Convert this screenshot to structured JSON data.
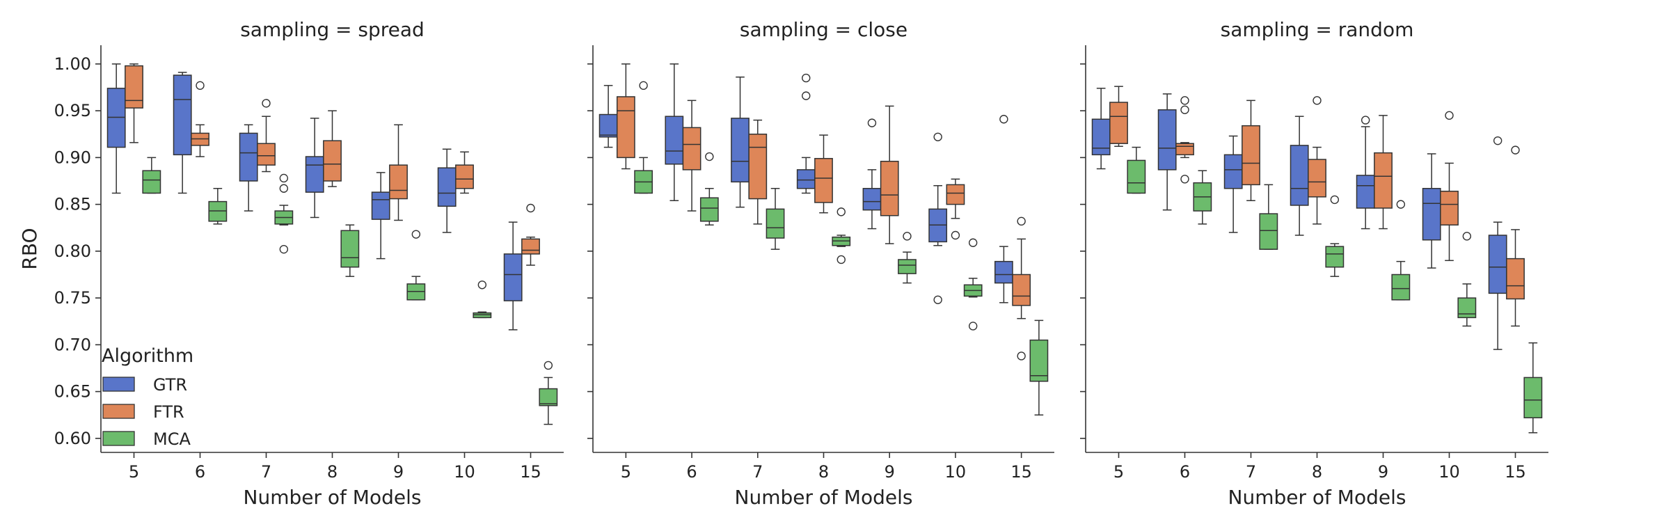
{
  "chart_data": {
    "type": "box",
    "x_label": "Number of Models",
    "y_label": "RBO",
    "categories": [
      "5",
      "6",
      "7",
      "8",
      "9",
      "10",
      "15"
    ],
    "ylim": [
      0.585,
      1.02
    ],
    "y_ticks": [
      0.6,
      0.65,
      0.7,
      0.75,
      0.8,
      0.85,
      0.9,
      0.95,
      1.0
    ],
    "y_tick_labels": [
      "0.60",
      "0.65",
      "0.70",
      "0.75",
      "0.80",
      "0.85",
      "0.90",
      "0.95",
      "1.00"
    ],
    "grid": false,
    "legend": {
      "title": "Algorithm",
      "placement": "lower-left",
      "entries": [
        "GTR",
        "FTR",
        "MCA"
      ]
    },
    "series": [
      {
        "name": "GTR",
        "color": "#5975c9"
      },
      {
        "name": "FTR",
        "color": "#de8658"
      },
      {
        "name": "MCA",
        "color": "#6cbb6c"
      }
    ],
    "panels": [
      {
        "title": "sampling = spread",
        "boxes": {
          "GTR": [
            {
              "whislo": 0.862,
              "q1": 0.911,
              "med": 0.943,
              "q3": 0.974,
              "whishi": 1.0,
              "fliers": []
            },
            {
              "whislo": 0.862,
              "q1": 0.903,
              "med": 0.962,
              "q3": 0.988,
              "whishi": 0.991,
              "fliers": []
            },
            {
              "whislo": 0.843,
              "q1": 0.875,
              "med": 0.905,
              "q3": 0.926,
              "whishi": 0.935,
              "fliers": []
            },
            {
              "whislo": 0.836,
              "q1": 0.863,
              "med": 0.892,
              "q3": 0.901,
              "whishi": 0.942,
              "fliers": []
            },
            {
              "whislo": 0.792,
              "q1": 0.834,
              "med": 0.855,
              "q3": 0.863,
              "whishi": 0.884,
              "fliers": []
            },
            {
              "whislo": 0.82,
              "q1": 0.848,
              "med": 0.862,
              "q3": 0.889,
              "whishi": 0.909,
              "fliers": []
            },
            {
              "whislo": 0.716,
              "q1": 0.747,
              "med": 0.775,
              "q3": 0.797,
              "whishi": 0.831,
              "fliers": []
            }
          ],
          "FTR": [
            {
              "whislo": 0.916,
              "q1": 0.953,
              "med": 0.961,
              "q3": 0.998,
              "whishi": 1.0,
              "fliers": []
            },
            {
              "whislo": 0.901,
              "q1": 0.913,
              "med": 0.92,
              "q3": 0.926,
              "whishi": 0.935,
              "fliers": [
                0.977
              ]
            },
            {
              "whislo": 0.885,
              "q1": 0.892,
              "med": 0.902,
              "q3": 0.915,
              "whishi": 0.944,
              "fliers": [
                0.958
              ]
            },
            {
              "whislo": 0.869,
              "q1": 0.875,
              "med": 0.893,
              "q3": 0.918,
              "whishi": 0.95,
              "fliers": []
            },
            {
              "whislo": 0.833,
              "q1": 0.856,
              "med": 0.865,
              "q3": 0.892,
              "whishi": 0.935,
              "fliers": []
            },
            {
              "whislo": 0.862,
              "q1": 0.867,
              "med": 0.877,
              "q3": 0.892,
              "whishi": 0.906,
              "fliers": []
            },
            {
              "whislo": 0.785,
              "q1": 0.797,
              "med": 0.801,
              "q3": 0.813,
              "whishi": 0.815,
              "fliers": [
                0.846
              ]
            }
          ],
          "MCA": [
            {
              "whislo": 0.862,
              "q1": 0.862,
              "med": 0.876,
              "q3": 0.886,
              "whishi": 0.9,
              "fliers": []
            },
            {
              "whislo": 0.829,
              "q1": 0.832,
              "med": 0.843,
              "q3": 0.853,
              "whishi": 0.867,
              "fliers": []
            },
            {
              "whislo": 0.828,
              "q1": 0.829,
              "med": 0.836,
              "q3": 0.843,
              "whishi": 0.849,
              "fliers": [
                0.878,
                0.867,
                0.802
              ]
            },
            {
              "whislo": 0.773,
              "q1": 0.783,
              "med": 0.793,
              "q3": 0.822,
              "whishi": 0.828,
              "fliers": []
            },
            {
              "whislo": 0.748,
              "q1": 0.748,
              "med": 0.757,
              "q3": 0.765,
              "whishi": 0.773,
              "fliers": [
                0.818
              ]
            },
            {
              "whislo": 0.729,
              "q1": 0.729,
              "med": 0.732,
              "q3": 0.734,
              "whishi": 0.735,
              "fliers": [
                0.764
              ]
            },
            {
              "whislo": 0.615,
              "q1": 0.635,
              "med": 0.637,
              "q3": 0.653,
              "whishi": 0.665,
              "fliers": [
                0.678
              ]
            }
          ]
        }
      },
      {
        "title": "sampling = close",
        "boxes": {
          "GTR": [
            {
              "whislo": 0.911,
              "q1": 0.922,
              "med": 0.924,
              "q3": 0.946,
              "whishi": 0.977,
              "fliers": []
            },
            {
              "whislo": 0.854,
              "q1": 0.893,
              "med": 0.907,
              "q3": 0.944,
              "whishi": 1.0,
              "fliers": []
            },
            {
              "whislo": 0.847,
              "q1": 0.874,
              "med": 0.896,
              "q3": 0.942,
              "whishi": 0.986,
              "fliers": []
            },
            {
              "whislo": 0.862,
              "q1": 0.867,
              "med": 0.876,
              "q3": 0.887,
              "whishi": 0.9,
              "fliers": [
                0.966,
                0.985
              ]
            },
            {
              "whislo": 0.824,
              "q1": 0.844,
              "med": 0.853,
              "q3": 0.867,
              "whishi": 0.887,
              "fliers": [
                0.937
              ]
            },
            {
              "whislo": 0.806,
              "q1": 0.81,
              "med": 0.828,
              "q3": 0.845,
              "whishi": 0.87,
              "fliers": [
                0.922,
                0.748
              ]
            },
            {
              "whislo": 0.745,
              "q1": 0.766,
              "med": 0.775,
              "q3": 0.789,
              "whishi": 0.805,
              "fliers": [
                0.941
              ]
            }
          ],
          "FTR": [
            {
              "whislo": 0.888,
              "q1": 0.9,
              "med": 0.95,
              "q3": 0.965,
              "whishi": 1.0,
              "fliers": []
            },
            {
              "whislo": 0.843,
              "q1": 0.887,
              "med": 0.914,
              "q3": 0.932,
              "whishi": 0.961,
              "fliers": []
            },
            {
              "whislo": 0.829,
              "q1": 0.856,
              "med": 0.911,
              "q3": 0.925,
              "whishi": 0.94,
              "fliers": []
            },
            {
              "whislo": 0.841,
              "q1": 0.852,
              "med": 0.878,
              "q3": 0.899,
              "whishi": 0.924,
              "fliers": []
            },
            {
              "whislo": 0.808,
              "q1": 0.838,
              "med": 0.86,
              "q3": 0.896,
              "whishi": 0.955,
              "fliers": []
            },
            {
              "whislo": 0.835,
              "q1": 0.85,
              "med": 0.862,
              "q3": 0.871,
              "whishi": 0.877,
              "fliers": [
                0.817
              ]
            },
            {
              "whislo": 0.728,
              "q1": 0.742,
              "med": 0.752,
              "q3": 0.775,
              "whishi": 0.813,
              "fliers": [
                0.832,
                0.688
              ]
            }
          ],
          "MCA": [
            {
              "whislo": 0.862,
              "q1": 0.862,
              "med": 0.874,
              "q3": 0.886,
              "whishi": 0.9,
              "fliers": [
                0.977
              ]
            },
            {
              "whislo": 0.828,
              "q1": 0.832,
              "med": 0.846,
              "q3": 0.857,
              "whishi": 0.867,
              "fliers": [
                0.901
              ]
            },
            {
              "whislo": 0.802,
              "q1": 0.814,
              "med": 0.825,
              "q3": 0.845,
              "whishi": 0.867,
              "fliers": []
            },
            {
              "whislo": 0.805,
              "q1": 0.806,
              "med": 0.811,
              "q3": 0.815,
              "whishi": 0.817,
              "fliers": [
                0.842,
                0.791
              ]
            },
            {
              "whislo": 0.766,
              "q1": 0.776,
              "med": 0.785,
              "q3": 0.791,
              "whishi": 0.799,
              "fliers": [
                0.816
              ]
            },
            {
              "whislo": 0.751,
              "q1": 0.752,
              "med": 0.758,
              "q3": 0.764,
              "whishi": 0.771,
              "fliers": [
                0.809,
                0.72
              ]
            },
            {
              "whislo": 0.625,
              "q1": 0.661,
              "med": 0.667,
              "q3": 0.705,
              "whishi": 0.726,
              "fliers": []
            }
          ]
        }
      },
      {
        "title": "sampling = random",
        "boxes": {
          "GTR": [
            {
              "whislo": 0.888,
              "q1": 0.903,
              "med": 0.91,
              "q3": 0.941,
              "whishi": 0.974,
              "fliers": []
            },
            {
              "whislo": 0.844,
              "q1": 0.887,
              "med": 0.91,
              "q3": 0.951,
              "whishi": 0.968,
              "fliers": []
            },
            {
              "whislo": 0.82,
              "q1": 0.867,
              "med": 0.887,
              "q3": 0.903,
              "whishi": 0.923,
              "fliers": []
            },
            {
              "whislo": 0.817,
              "q1": 0.849,
              "med": 0.867,
              "q3": 0.913,
              "whishi": 0.944,
              "fliers": []
            },
            {
              "whislo": 0.824,
              "q1": 0.846,
              "med": 0.87,
              "q3": 0.881,
              "whishi": 0.933,
              "fliers": [
                0.94
              ]
            },
            {
              "whislo": 0.782,
              "q1": 0.812,
              "med": 0.851,
              "q3": 0.867,
              "whishi": 0.904,
              "fliers": []
            },
            {
              "whislo": 0.695,
              "q1": 0.755,
              "med": 0.783,
              "q3": 0.817,
              "whishi": 0.831,
              "fliers": [
                0.918
              ]
            }
          ],
          "FTR": [
            {
              "whislo": 0.912,
              "q1": 0.915,
              "med": 0.944,
              "q3": 0.959,
              "whishi": 0.976,
              "fliers": []
            },
            {
              "whislo": 0.9,
              "q1": 0.903,
              "med": 0.912,
              "q3": 0.915,
              "whishi": 0.916,
              "fliers": [
                0.961,
                0.951,
                0.877
              ]
            },
            {
              "whislo": 0.854,
              "q1": 0.871,
              "med": 0.894,
              "q3": 0.934,
              "whishi": 0.961,
              "fliers": []
            },
            {
              "whislo": 0.829,
              "q1": 0.858,
              "med": 0.874,
              "q3": 0.898,
              "whishi": 0.911,
              "fliers": [
                0.961
              ]
            },
            {
              "whislo": 0.824,
              "q1": 0.846,
              "med": 0.88,
              "q3": 0.905,
              "whishi": 0.945,
              "fliers": []
            },
            {
              "whislo": 0.79,
              "q1": 0.828,
              "med": 0.85,
              "q3": 0.864,
              "whishi": 0.894,
              "fliers": [
                0.945
              ]
            },
            {
              "whislo": 0.72,
              "q1": 0.749,
              "med": 0.763,
              "q3": 0.792,
              "whishi": 0.823,
              "fliers": [
                0.908
              ]
            }
          ],
          "MCA": [
            {
              "whislo": 0.862,
              "q1": 0.862,
              "med": 0.873,
              "q3": 0.897,
              "whishi": 0.911,
              "fliers": []
            },
            {
              "whislo": 0.829,
              "q1": 0.843,
              "med": 0.858,
              "q3": 0.873,
              "whishi": 0.886,
              "fliers": []
            },
            {
              "whislo": 0.802,
              "q1": 0.802,
              "med": 0.822,
              "q3": 0.84,
              "whishi": 0.871,
              "fliers": []
            },
            {
              "whislo": 0.773,
              "q1": 0.783,
              "med": 0.797,
              "q3": 0.805,
              "whishi": 0.808,
              "fliers": [
                0.855
              ]
            },
            {
              "whislo": 0.748,
              "q1": 0.748,
              "med": 0.76,
              "q3": 0.775,
              "whishi": 0.789,
              "fliers": [
                0.85
              ]
            },
            {
              "whislo": 0.72,
              "q1": 0.729,
              "med": 0.733,
              "q3": 0.75,
              "whishi": 0.765,
              "fliers": [
                0.816
              ]
            },
            {
              "whislo": 0.606,
              "q1": 0.622,
              "med": 0.641,
              "q3": 0.665,
              "whishi": 0.702,
              "fliers": []
            }
          ]
        }
      }
    ]
  }
}
